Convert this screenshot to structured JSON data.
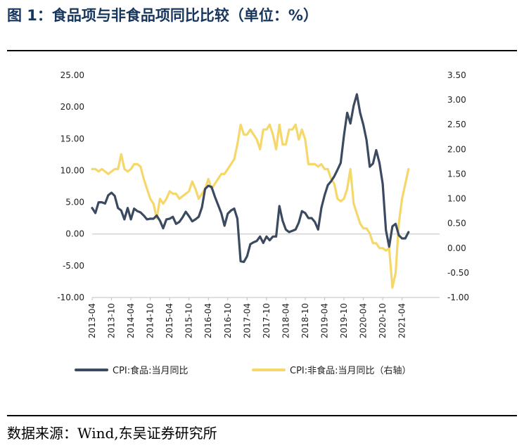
{
  "figure": {
    "title": "图 1：食品项与非食品项同比比较（单位：%）",
    "source": "数据来源：Wind,东吴证券研究所"
  },
  "colors": {
    "food": "#3b4a61",
    "nonfood": "#f5d76a",
    "axis": "#bfbfbf"
  },
  "chart_data": {
    "type": "line",
    "x_ticks": [
      "2013-04",
      "2013-10",
      "2014-04",
      "2014-10",
      "2015-04",
      "2015-10",
      "2016-04",
      "2016-10",
      "2017-04",
      "2017-10",
      "2018-04",
      "2018-10",
      "2019-04",
      "2019-10",
      "2020-04",
      "2020-10",
      "2021-04"
    ],
    "y_left": {
      "range": [
        -10,
        25
      ],
      "ticks": [
        "25.00",
        "20.00",
        "15.00",
        "10.00",
        "5.00",
        "0.00",
        "-5.00",
        "-10.00"
      ]
    },
    "y_right": {
      "range": [
        -1,
        3.5
      ],
      "ticks": [
        "3.50",
        "3.00",
        "2.50",
        "2.00",
        "1.50",
        "1.00",
        "0.50",
        "0.00",
        "-0.50",
        "-1.00"
      ]
    },
    "x_start": "2013-04",
    "series": [
      {
        "name": "CPI:食品:当月同比",
        "axis": "left",
        "values": [
          4.1,
          3.3,
          5.0,
          5.0,
          4.8,
          6.1,
          6.5,
          6.0,
          4.1,
          3.7,
          2.3,
          4.1,
          2.3,
          4.0,
          3.6,
          3.4,
          2.9,
          2.3,
          2.4,
          2.4,
          2.9,
          2.1,
          0.9,
          2.3,
          2.4,
          2.7,
          1.6,
          1.9,
          2.6,
          3.5,
          2.8,
          2.0,
          2.3,
          2.7,
          4.2,
          7.1,
          7.6,
          7.4,
          5.9,
          4.6,
          3.3,
          1.3,
          3.2,
          3.7,
          4.0,
          2.4,
          -4.3,
          -4.4,
          -3.5,
          -1.6,
          -1.3,
          -1.1,
          -0.4,
          -1.4,
          -0.4,
          -1.0,
          -0.4,
          -0.4,
          4.4,
          2.1,
          0.7,
          0.3,
          0.5,
          0.7,
          1.8,
          3.6,
          3.3,
          2.5,
          2.5,
          1.9,
          0.7,
          4.1,
          6.1,
          7.7,
          8.3,
          9.1,
          10.1,
          11.2,
          15.5,
          19.1,
          17.4,
          20.2,
          22.0,
          19.1,
          17.2,
          14.8,
          10.6,
          11.1,
          13.2,
          11.2,
          7.9,
          0.6,
          -2.0,
          1.2,
          1.6,
          -0.2,
          -0.7,
          -0.7,
          0.3
        ]
      },
      {
        "name": "CPI:非食品:当月同比",
        "axis": "right",
        "values": [
          1.6,
          1.6,
          1.55,
          1.6,
          1.55,
          1.5,
          1.55,
          1.6,
          1.6,
          1.9,
          1.6,
          1.55,
          1.6,
          1.7,
          1.7,
          1.65,
          1.4,
          1.2,
          1.0,
          0.9,
          0.6,
          1.0,
          0.9,
          1.0,
          1.15,
          1.1,
          1.1,
          1.0,
          1.05,
          1.1,
          1.15,
          1.35,
          1.2,
          1.0,
          1.1,
          1.2,
          1.4,
          1.2,
          1.3,
          1.4,
          1.5,
          1.5,
          1.6,
          1.7,
          1.8,
          2.1,
          2.5,
          2.3,
          2.3,
          2.4,
          2.3,
          2.2,
          2.0,
          2.4,
          2.4,
          2.5,
          2.3,
          2.0,
          2.5,
          2.1,
          2.1,
          2.4,
          2.4,
          2.5,
          2.2,
          2.4,
          2.2,
          1.7,
          1.7,
          1.7,
          1.65,
          1.7,
          1.6,
          1.6,
          1.4,
          1.3,
          1.0,
          0.95,
          1.0,
          1.2,
          1.6,
          0.9,
          0.7,
          0.5,
          0.4,
          0.4,
          0.3,
          0.1,
          0.1,
          0.0,
          0.0,
          -0.05,
          0.0,
          -0.8,
          -0.5,
          0.5,
          1.0,
          1.3,
          1.6
        ]
      }
    ]
  }
}
